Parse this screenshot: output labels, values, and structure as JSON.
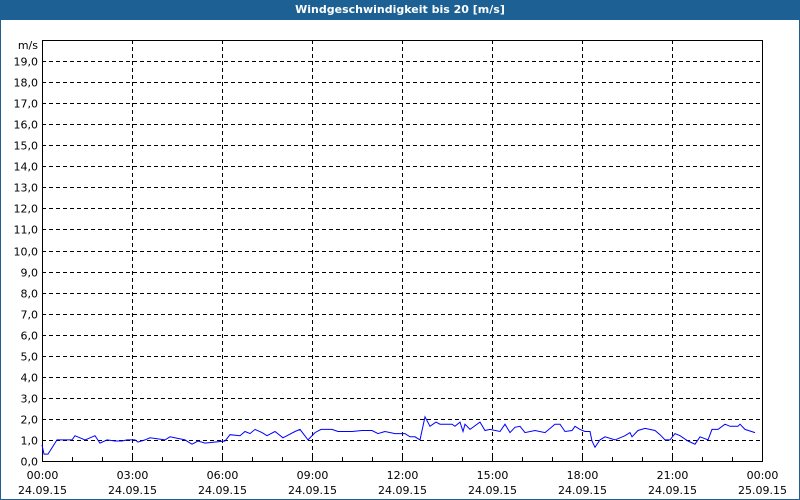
{
  "window": {
    "title": "Windgeschwindigkeit bis 20 [m/s]"
  },
  "chart_data": {
    "type": "line",
    "title": "Windgeschwindigkeit bis 20 [m/s]",
    "ylabel": "m/s",
    "xlabel": "",
    "ylim": [
      0,
      20
    ],
    "xlim": [
      "24.09.15 00:00",
      "25.09.15 00:00"
    ],
    "grid": true,
    "line_color": "#0000ff",
    "yticks": [
      "0,0",
      "1,0",
      "2,0",
      "3,0",
      "4,0",
      "5,0",
      "6,0",
      "7,0",
      "8,0",
      "9,0",
      "10,0",
      "11,0",
      "12,0",
      "13,0",
      "14,0",
      "15,0",
      "16,0",
      "17,0",
      "18,0",
      "19,0"
    ],
    "xticks": [
      {
        "time": "00:00",
        "date": "24.09.15"
      },
      {
        "time": "03:00",
        "date": "24.09.15"
      },
      {
        "time": "06:00",
        "date": "24.09.15"
      },
      {
        "time": "09:00",
        "date": "24.09.15"
      },
      {
        "time": "12:00",
        "date": "24.09.15"
      },
      {
        "time": "15:00",
        "date": "24.09.15"
      },
      {
        "time": "18:00",
        "date": "24.09.15"
      },
      {
        "time": "21:00",
        "date": "24.09.15"
      },
      {
        "time": "00:00",
        "date": "25.09.15"
      }
    ],
    "series": [
      {
        "points": [
          [
            "00:00",
            0.76
          ],
          [
            "00:04",
            0.33
          ],
          [
            "00:12",
            0.33
          ],
          [
            "00:30",
            1.0
          ],
          [
            "01:00",
            1.0
          ],
          [
            "01:06",
            1.2
          ],
          [
            "01:26",
            1.0
          ],
          [
            "01:46",
            1.2
          ],
          [
            "01:56",
            0.85
          ],
          [
            "02:10",
            1.0
          ],
          [
            "02:26",
            0.95
          ],
          [
            "02:40",
            0.95
          ],
          [
            "02:50",
            1.0
          ],
          [
            "03:06",
            1.0
          ],
          [
            "03:12",
            0.9
          ],
          [
            "03:26",
            1.0
          ],
          [
            "03:36",
            1.1
          ],
          [
            "04:06",
            1.0
          ],
          [
            "04:16",
            1.15
          ],
          [
            "04:46",
            1.0
          ],
          [
            "05:00",
            0.8
          ],
          [
            "05:12",
            0.95
          ],
          [
            "05:26",
            0.85
          ],
          [
            "06:06",
            0.95
          ],
          [
            "06:16",
            1.25
          ],
          [
            "06:36",
            1.2
          ],
          [
            "06:46",
            1.4
          ],
          [
            "06:56",
            1.3
          ],
          [
            "07:06",
            1.5
          ],
          [
            "07:20",
            1.35
          ],
          [
            "07:30",
            1.2
          ],
          [
            "07:46",
            1.4
          ],
          [
            "08:02",
            1.1
          ],
          [
            "08:26",
            1.4
          ],
          [
            "08:36",
            1.5
          ],
          [
            "08:52",
            1.0
          ],
          [
            "09:06",
            1.35
          ],
          [
            "09:18",
            1.5
          ],
          [
            "09:40",
            1.5
          ],
          [
            "09:52",
            1.4
          ],
          [
            "10:20",
            1.4
          ],
          [
            "10:40",
            1.45
          ],
          [
            "11:00",
            1.45
          ],
          [
            "11:12",
            1.3
          ],
          [
            "11:26",
            1.4
          ],
          [
            "11:46",
            1.3
          ],
          [
            "12:06",
            1.3
          ],
          [
            "12:16",
            1.15
          ],
          [
            "12:26",
            1.15
          ],
          [
            "12:36",
            1.0
          ],
          [
            "12:46",
            2.1
          ],
          [
            "12:56",
            1.65
          ],
          [
            "13:08",
            1.85
          ],
          [
            "13:16",
            1.75
          ],
          [
            "13:40",
            1.75
          ],
          [
            "13:46",
            1.65
          ],
          [
            "13:56",
            1.85
          ],
          [
            "14:02",
            1.4
          ],
          [
            "14:06",
            1.75
          ],
          [
            "14:16",
            1.5
          ],
          [
            "14:36",
            1.85
          ],
          [
            "14:46",
            1.45
          ],
          [
            "14:56",
            1.5
          ],
          [
            "15:16",
            1.4
          ],
          [
            "15:26",
            1.75
          ],
          [
            "15:36",
            1.35
          ],
          [
            "15:46",
            1.6
          ],
          [
            "15:56",
            1.65
          ],
          [
            "16:06",
            1.35
          ],
          [
            "16:26",
            1.45
          ],
          [
            "16:46",
            1.35
          ],
          [
            "17:06",
            1.75
          ],
          [
            "17:16",
            1.75
          ],
          [
            "17:26",
            1.4
          ],
          [
            "17:40",
            1.45
          ],
          [
            "17:46",
            1.65
          ],
          [
            "17:56",
            1.5
          ],
          [
            "18:06",
            1.4
          ],
          [
            "18:16",
            1.4
          ],
          [
            "18:20",
            0.95
          ],
          [
            "18:26",
            0.65
          ],
          [
            "18:36",
            1.0
          ],
          [
            "18:46",
            1.15
          ],
          [
            "19:06",
            1.0
          ],
          [
            "19:26",
            1.2
          ],
          [
            "19:36",
            1.35
          ],
          [
            "19:40",
            1.15
          ],
          [
            "19:52",
            1.45
          ],
          [
            "20:06",
            1.55
          ],
          [
            "20:26",
            1.45
          ],
          [
            "20:36",
            1.25
          ],
          [
            "20:46",
            1.0
          ],
          [
            "20:56",
            1.0
          ],
          [
            "21:06",
            1.3
          ],
          [
            "21:16",
            1.2
          ],
          [
            "21:32",
            0.95
          ],
          [
            "21:46",
            0.8
          ],
          [
            "21:56",
            1.15
          ],
          [
            "22:12",
            1.0
          ],
          [
            "22:20",
            1.5
          ],
          [
            "22:32",
            1.5
          ],
          [
            "22:46",
            1.75
          ],
          [
            "22:56",
            1.65
          ],
          [
            "23:12",
            1.65
          ],
          [
            "23:16",
            1.75
          ],
          [
            "23:26",
            1.5
          ],
          [
            "23:46",
            1.35
          ]
        ]
      }
    ]
  }
}
